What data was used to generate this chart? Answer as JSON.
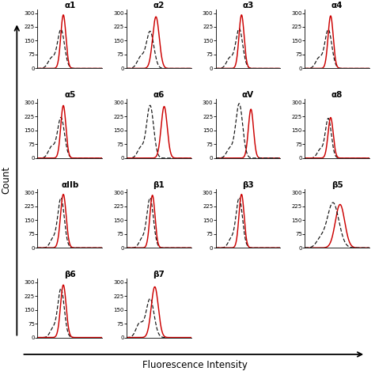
{
  "panels": [
    {
      "label": "α1",
      "row": 0,
      "col": 0,
      "red_mu": 0.22,
      "red_sig": 0.022,
      "red_amp": 290,
      "blk_mu": 0.2,
      "blk_sig": 0.03,
      "blk_amp": 210,
      "blk2_mu": 0.12,
      "blk2_sig": 0.03,
      "blk2_amp": 55,
      "red_front": true
    },
    {
      "label": "α2",
      "row": 0,
      "col": 1,
      "red_mu": 0.25,
      "red_sig": 0.028,
      "red_amp": 280,
      "blk_mu": 0.2,
      "blk_sig": 0.032,
      "blk_amp": 200,
      "blk2_mu": 0.12,
      "blk2_sig": 0.03,
      "blk2_amp": 60,
      "red_front": true
    },
    {
      "label": "α3",
      "row": 0,
      "col": 2,
      "red_mu": 0.22,
      "red_sig": 0.022,
      "red_amp": 290,
      "blk_mu": 0.2,
      "blk_sig": 0.03,
      "blk_amp": 215,
      "blk2_mu": 0.12,
      "blk2_sig": 0.028,
      "blk2_amp": 55,
      "red_front": true
    },
    {
      "label": "α4",
      "row": 0,
      "col": 3,
      "red_mu": 0.22,
      "red_sig": 0.022,
      "red_amp": 285,
      "blk_mu": 0.2,
      "blk_sig": 0.03,
      "blk_amp": 210,
      "blk2_mu": 0.12,
      "blk2_sig": 0.028,
      "blk2_amp": 55,
      "red_front": true
    },
    {
      "label": "α5",
      "row": 1,
      "col": 0,
      "red_mu": 0.22,
      "red_sig": 0.022,
      "red_amp": 285,
      "blk_mu": 0.2,
      "blk_sig": 0.03,
      "blk_amp": 220,
      "blk2_mu": 0.12,
      "blk2_sig": 0.028,
      "blk2_amp": 60,
      "red_front": true
    },
    {
      "label": "α6",
      "row": 1,
      "col": 1,
      "red_mu": 0.32,
      "red_sig": 0.026,
      "red_amp": 280,
      "blk_mu": 0.2,
      "blk_sig": 0.03,
      "blk_amp": 285,
      "blk2_mu": 0.12,
      "blk2_sig": 0.028,
      "blk2_amp": 55,
      "red_front": true
    },
    {
      "label": "αV",
      "row": 1,
      "col": 2,
      "red_mu": 0.3,
      "red_sig": 0.022,
      "red_amp": 265,
      "blk_mu": 0.2,
      "blk_sig": 0.03,
      "blk_amp": 295,
      "blk2_mu": 0.12,
      "blk2_sig": 0.028,
      "blk2_amp": 50,
      "red_front": false
    },
    {
      "label": "α8",
      "row": 1,
      "col": 3,
      "red_mu": 0.22,
      "red_sig": 0.022,
      "red_amp": 220,
      "blk_mu": 0.2,
      "blk_sig": 0.026,
      "blk_amp": 215,
      "blk2_mu": 0.13,
      "blk2_sig": 0.025,
      "blk2_amp": 45,
      "red_front": true
    },
    {
      "label": "αIIb",
      "row": 2,
      "col": 0,
      "red_mu": 0.22,
      "red_sig": 0.024,
      "red_amp": 290,
      "blk_mu": 0.2,
      "blk_sig": 0.028,
      "blk_amp": 270,
      "blk2_mu": 0.13,
      "blk2_sig": 0.025,
      "blk2_amp": 45,
      "red_front": true
    },
    {
      "label": "β1",
      "row": 2,
      "col": 1,
      "red_mu": 0.22,
      "red_sig": 0.022,
      "red_amp": 285,
      "blk_mu": 0.2,
      "blk_sig": 0.028,
      "blk_amp": 270,
      "blk2_mu": 0.13,
      "blk2_sig": 0.025,
      "blk2_amp": 45,
      "red_front": true
    },
    {
      "label": "β3",
      "row": 2,
      "col": 2,
      "red_mu": 0.22,
      "red_sig": 0.022,
      "red_amp": 290,
      "blk_mu": 0.2,
      "blk_sig": 0.028,
      "blk_amp": 270,
      "blk2_mu": 0.13,
      "blk2_sig": 0.025,
      "blk2_amp": 45,
      "red_front": true
    },
    {
      "label": "β5",
      "row": 2,
      "col": 3,
      "red_mu": 0.3,
      "red_sig": 0.04,
      "red_amp": 235,
      "blk_mu": 0.24,
      "blk_sig": 0.05,
      "blk_amp": 245,
      "blk2_mu": 0.13,
      "blk2_sig": 0.035,
      "blk2_amp": 40,
      "red_front": false
    },
    {
      "label": "β6",
      "row": 3,
      "col": 0,
      "red_mu": 0.22,
      "red_sig": 0.024,
      "red_amp": 285,
      "blk_mu": 0.2,
      "blk_sig": 0.028,
      "blk_amp": 265,
      "blk2_mu": 0.13,
      "blk2_sig": 0.025,
      "blk2_amp": 45,
      "red_front": true
    },
    {
      "label": "β7",
      "row": 3,
      "col": 1,
      "red_mu": 0.24,
      "red_sig": 0.03,
      "red_amp": 275,
      "blk_mu": 0.2,
      "blk_sig": 0.034,
      "blk_amp": 210,
      "blk2_mu": 0.11,
      "blk2_sig": 0.03,
      "blk2_amp": 75,
      "red_front": true
    }
  ],
  "yticks": [
    0,
    75,
    150,
    225,
    300
  ],
  "ylim": [
    0,
    320
  ],
  "xlim": [
    0,
    0.55
  ],
  "xlabel": "Fluorescence Intensity",
  "ylabel": "Count",
  "bg_color": "#ffffff",
  "red_color": "#cc0000",
  "black_color": "#111111",
  "title_fontsize": 7.5,
  "tick_fontsize": 5.0,
  "label_fontsize": 8.5
}
